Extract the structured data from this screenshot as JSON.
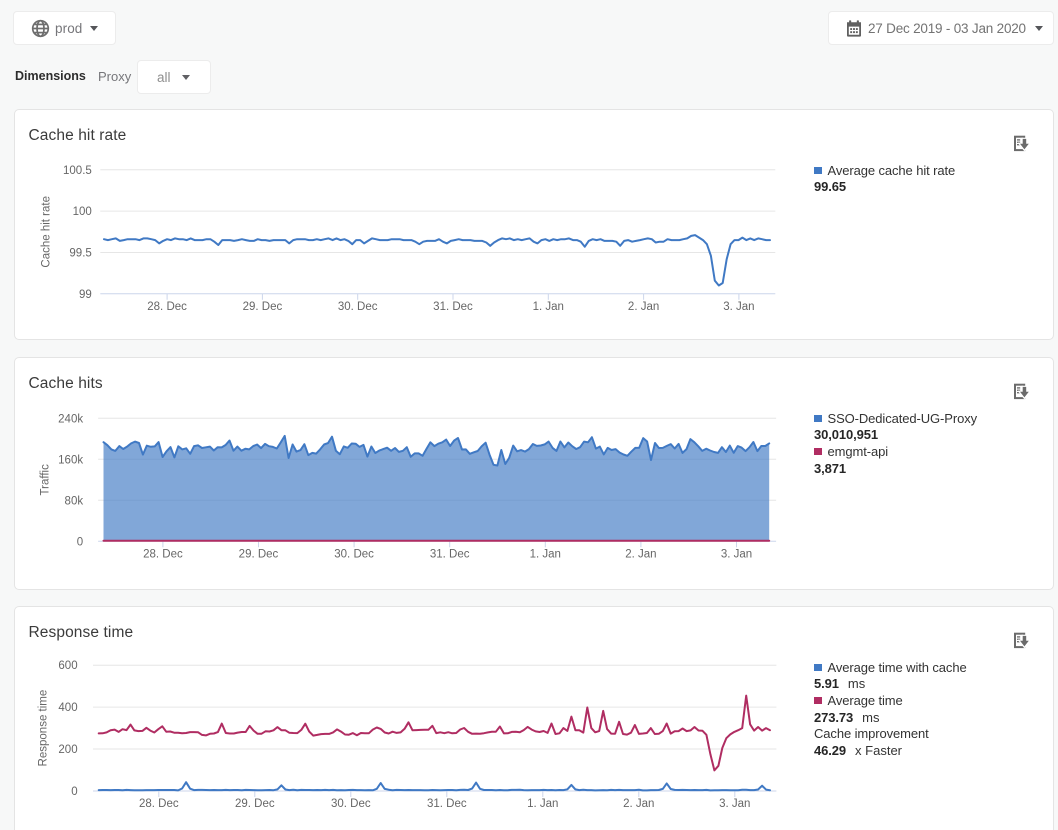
{
  "topbar": {
    "environment": "prod",
    "date_range": "27 Dec 2019 - 03 Jan 2020"
  },
  "filters": {
    "dimensions_label": "Dimensions",
    "proxy_label": "Proxy",
    "proxy_value": "all"
  },
  "colors": {
    "series_blue": "#4079c4",
    "series_red": "#b02d62",
    "grid": "#e6e6e6",
    "axis_line": "#ccd6eb",
    "axis_text": "#666666"
  },
  "cards": [
    {
      "title": "Cache hit rate",
      "legend": [
        {
          "swatch": "#4079c4",
          "label": "Average cache hit rate",
          "value": "99.65",
          "unit": ""
        }
      ]
    },
    {
      "title": "Cache hits",
      "legend": [
        {
          "swatch": "#4079c4",
          "label": "SSO-Dedicated-UG-Proxy",
          "value": "30,010,951",
          "unit": ""
        },
        {
          "swatch": "#b02d62",
          "label": "emgmt-api",
          "value": "3,871",
          "unit": ""
        }
      ]
    },
    {
      "title": "Response time",
      "legend": [
        {
          "swatch": "#4079c4",
          "label": "Average time with cache",
          "value": "5.91",
          "unit": "ms"
        },
        {
          "swatch": "#b02d62",
          "label": "Average time",
          "value": "273.73",
          "unit": "ms"
        },
        {
          "swatch": null,
          "label": "Cache improvement",
          "value": "46.29",
          "unit": "x Faster"
        }
      ]
    }
  ],
  "chart_data": [
    {
      "type": "line",
      "title": "Cache hit rate",
      "ylabel": "Cache hit rate",
      "yticks": [
        100.5,
        100,
        99.5,
        99
      ],
      "ytick_labels": [
        "100.5",
        "100",
        "99.5",
        "99"
      ],
      "ylim": [
        99,
        100.5
      ],
      "xtick_labels": [
        "28. Dec",
        "29. Dec",
        "30. Dec",
        "31. Dec",
        "1. Jan",
        "2. Jan",
        "3. Jan"
      ],
      "series": [
        {
          "name": "Average cache hit rate",
          "color": "#4079c4",
          "values": [
            99.66,
            99.65,
            99.66,
            99.67,
            99.64,
            99.65,
            99.66,
            99.66,
            99.66,
            99.65,
            99.67,
            99.67,
            99.66,
            99.65,
            99.61,
            99.64,
            99.66,
            99.65,
            99.67,
            99.66,
            99.66,
            99.65,
            99.67,
            99.65,
            99.65,
            99.65,
            99.66,
            99.66,
            99.63,
            99.59,
            99.65,
            99.65,
            99.65,
            99.64,
            99.65,
            99.66,
            99.65,
            99.64,
            99.64,
            99.66,
            99.65,
            99.65,
            99.64,
            99.65,
            99.65,
            99.65,
            99.65,
            99.61,
            99.65,
            99.66,
            99.66,
            99.66,
            99.65,
            99.65,
            99.66,
            99.65,
            99.66,
            99.67,
            99.65,
            99.67,
            99.65,
            99.66,
            99.64,
            99.6,
            99.65,
            99.65,
            99.61,
            99.64,
            99.67,
            99.66,
            99.65,
            99.65,
            99.65,
            99.66,
            99.66,
            99.66,
            99.65,
            99.65,
            99.65,
            99.63,
            99.6,
            99.63,
            99.64,
            99.64,
            99.64,
            99.66,
            99.63,
            99.61,
            99.64,
            99.65,
            99.66,
            99.65,
            99.65,
            99.65,
            99.64,
            99.64,
            99.64,
            99.62,
            99.58,
            99.62,
            99.65,
            99.67,
            99.66,
            99.67,
            99.65,
            99.66,
            99.65,
            99.66,
            99.67,
            99.63,
            99.61,
            99.65,
            99.66,
            99.64,
            99.66,
            99.65,
            99.66,
            99.66,
            99.67,
            99.65,
            99.65,
            99.63,
            99.57,
            99.64,
            99.66,
            99.65,
            99.66,
            99.64,
            99.64,
            99.64,
            99.63,
            99.58,
            99.64,
            99.65,
            99.63,
            99.64,
            99.65,
            99.66,
            99.67,
            99.66,
            99.62,
            99.63,
            99.63,
            99.66,
            99.65,
            99.65,
            99.65,
            99.66,
            99.67,
            99.7,
            99.71,
            99.68,
            99.65,
            99.6,
            99.46,
            99.16,
            99.1,
            99.13,
            99.42,
            99.6,
            99.65,
            99.65,
            99.68,
            99.65,
            99.67,
            99.65,
            99.67,
            99.66,
            99.65,
            99.65
          ]
        }
      ]
    },
    {
      "type": "area",
      "title": "Cache hits",
      "ylabel": "Traffic",
      "yticks": [
        240000,
        160000,
        80000,
        0
      ],
      "ytick_labels": [
        "240k",
        "160k",
        "80k",
        "0"
      ],
      "ylim": [
        0,
        240000
      ],
      "xtick_labels": [
        "28. Dec",
        "29. Dec",
        "30. Dec",
        "31. Dec",
        "1. Jan",
        "2. Jan",
        "3. Jan"
      ],
      "series": [
        {
          "name": "SSO-Dedicated-UG-Proxy",
          "color": "#4079c4",
          "fill": true,
          "values": [
            193334,
            187546,
            179386,
            176398,
            185852,
            180068,
            184851,
            191039,
            194592,
            191864,
            169257,
            186626,
            184318,
            185263,
            193510,
            164403,
            175572,
            183862,
            163766,
            185314,
            179251,
            181486,
            170725,
            185727,
            187230,
            182101,
            183391,
            184738,
            177154,
            183652,
            183222,
            187843,
            196687,
            176709,
            184697,
            176779,
            180466,
            179351,
            185673,
            188886,
            181925,
            190003,
            185480,
            184188,
            181014,
            193178,
            205752,
            162557,
            188968,
            175027,
            178044,
            189396,
            168268,
            172455,
            171104,
            179313,
            188909,
            191650,
            204023,
            176520,
            170039,
            185261,
            182441,
            190835,
            190416,
            184115,
            188073,
            165200,
            185018,
            172282,
            176932,
            179808,
            182564,
            176606,
            182062,
            174364,
            176605,
            183602,
            164830,
            171512,
            171452,
            166859,
            180325,
            193187,
            185683,
            190409,
            193202,
            198364,
            185947,
            196546,
            201547,
            179145,
            179238,
            170813,
            173682,
            176185,
            185130,
            192358,
            169179,
            149250,
            148000,
            178104,
            150831,
            162876,
            186635,
            175567,
            177869,
            175032,
            179962,
            189892,
            186081,
            186833,
            189117,
            194575,
            182325,
            176302,
            194674,
            183215,
            192813,
            185585,
            180137,
            183662,
            194532,
            193204,
            203183,
            180857,
            184791,
            169606,
            182188,
            178214,
            179886,
            173294,
            169435,
            166907,
            174905,
            182231,
            182647,
            201361,
            194677,
            158708,
            191891,
            182143,
            182203,
            186207,
            189578,
            181087,
            189989,
            172489,
            179917,
            199422,
            193117,
            185358,
            176434,
            180643,
            177212,
            174338,
            172524,
            183608,
            174288,
            186809,
            172740,
            185739,
            182818,
            175996,
            183571,
            193660,
            176034,
            185877,
            186000,
            191000
          ]
        },
        {
          "name": "emgmt-api",
          "color": "#b02d62",
          "fill": false,
          "values": [
            23,
            16,
            17,
            25,
            21,
            13,
            26,
            24,
            20,
            18,
            26,
            24,
            33,
            25,
            25,
            22,
            26,
            26,
            28,
            21,
            21,
            21,
            26,
            29,
            21,
            21,
            24,
            22,
            27,
            14,
            20,
            20,
            14,
            19,
            19,
            22,
            27,
            22,
            19,
            23,
            27,
            19,
            19,
            25,
            22,
            26,
            23,
            26,
            19,
            23,
            22,
            18,
            17,
            26,
            22,
            19,
            23,
            28,
            14,
            17,
            19,
            29,
            24,
            26,
            18,
            19,
            25,
            23,
            25,
            22,
            24,
            24,
            26,
            26,
            17,
            14,
            27,
            28,
            19,
            16,
            23,
            27,
            30,
            25,
            22,
            19,
            23,
            22,
            19,
            31,
            30,
            28,
            19,
            26,
            26,
            25,
            28,
            26,
            26,
            26,
            24,
            16,
            23,
            21,
            18,
            30,
            30,
            28,
            24,
            28,
            23,
            24,
            19,
            25,
            23,
            18,
            23,
            23,
            30,
            27,
            23,
            24,
            23,
            22,
            19,
            22,
            20,
            18,
            25,
            25,
            16,
            23,
            27,
            27,
            27,
            23,
            20,
            19,
            24,
            25,
            28,
            27,
            22,
            18,
            22,
            24,
            22,
            21,
            24,
            21,
            20,
            24,
            21,
            24,
            24,
            18,
            21,
            29,
            18,
            15,
            16,
            23,
            23,
            23,
            28,
            12,
            25,
            29,
            18,
            21
          ]
        }
      ]
    },
    {
      "type": "line",
      "title": "Response time",
      "ylabel": "Response time",
      "yticks": [
        600,
        400,
        200,
        0
      ],
      "ytick_labels": [
        "600",
        "400",
        "200",
        "0"
      ],
      "ylim": [
        0,
        600
      ],
      "xtick_labels": [
        "28. Dec",
        "29. Dec",
        "30. Dec",
        "31. Dec",
        "1. Jan",
        "2. Jan",
        "3. Jan"
      ],
      "series": [
        {
          "name": "Average time",
          "color": "#b02d62",
          "values": [
            274.9,
            275.1,
            279.3,
            289.9,
            293.0,
            281.8,
            294.7,
            290.4,
            316.6,
            288.9,
            285.6,
            286.6,
            301.6,
            288.1,
            278.8,
            294.6,
            308.8,
            283.0,
            283.7,
            277.8,
            278.1,
            275.8,
            276.7,
            281.0,
            280.9,
            280.5,
            267.6,
            265.1,
            272.9,
            274.0,
            280.8,
            321.4,
            276.6,
            274.3,
            274.3,
            278.3,
            281.2,
            281.4,
            310.7,
            287.9,
            273.0,
            273.3,
            284.5,
            283.6,
            289.4,
            304.8,
            290.0,
            289.5,
            277.6,
            276.5,
            276.1,
            291.3,
            321.0,
            283.5,
            264.3,
            267.6,
            271.5,
            272.1,
            272.2,
            279.5,
            293.6,
            283.3,
            269.3,
            268.4,
            276.0,
            265.4,
            276.6,
            275.8,
            275.3,
            292.9,
            302.7,
            296.2,
            279.0,
            274.3,
            282.6,
            277.2,
            279.7,
            296.5,
            327.8,
            289.5,
            290.4,
            291.2,
            292.4,
            291.9,
            310.8,
            276.1,
            279.8,
            275.8,
            280.2,
            275.3,
            276.5,
            293.3,
            300.6,
            282.2,
            272.7,
            273.9,
            273.2,
            275.5,
            279.5,
            282.3,
            282.9,
            307.5,
            274.6,
            275.3,
            281.9,
            282.5,
            280.0,
            290.2,
            305.6,
            292.9,
            284.4,
            281.6,
            286.0,
            277.2,
            322.0,
            271.9,
            275.4,
            300.0,
            286.8,
            355.0,
            290.0,
            289.5,
            278.3,
            398.0,
            300.0,
            280.1,
            285.7,
            382.0,
            295.0,
            273.7,
            273.5,
            330.0,
            271.6,
            268.9,
            278.2,
            315.0,
            272.4,
            274.1,
            276.7,
            300.0,
            271.8,
            272.7,
            285.5,
            322.0,
            273.7,
            284.9,
            285.8,
            298.0,
            285.7,
            288.9,
            305.0,
            288.4,
            287.0,
            268.0,
            175.0,
            98.0,
            120.0,
            205.0,
            252.0,
            270.0,
            282.0,
            290.0,
            300.0,
            455.0,
            318.0,
            288.0,
            305.0,
            288.0,
            300.0,
            290.0
          ]
        },
        {
          "name": "Average time with cache",
          "color": "#4079c4",
          "values": [
            4.4,
            4.64,
            4.87,
            4.14,
            4.93,
            4.67,
            3.54,
            5.41,
            4.05,
            3.24,
            3.67,
            3.69,
            4.44,
            4.21,
            4.16,
            4.83,
            4.64,
            4.62,
            4.69,
            4.83,
            2.92,
            11.76,
            42.0,
            10.92,
            4.4,
            5.13,
            5.23,
            4.54,
            4.05,
            4.74,
            4.03,
            4.4,
            5.09,
            4.01,
            4.96,
            4.87,
            3.73,
            5.08,
            4.89,
            4.47,
            3.87,
            3.8,
            4.02,
            4.78,
            3.73,
            7.56,
            27.0,
            7.02,
            4.48,
            6.11,
            3.44,
            5.43,
            4.5,
            4.69,
            4.48,
            4.71,
            4.29,
            5.42,
            4.08,
            5.19,
            3.95,
            4.36,
            3.65,
            4.72,
            5.41,
            4.35,
            4.26,
            3.62,
            4.24,
            3.29,
            10.64,
            38.0,
            9.88,
            6.37,
            3.99,
            5.4,
            4.57,
            4.29,
            4.7,
            4.44,
            4.48,
            4.11,
            3.42,
            3.32,
            4.86,
            4.21,
            3.98,
            4.41,
            4.96,
            4.53,
            3.94,
            5.26,
            5.51,
            4.75,
            11.2,
            40.0,
            10.4,
            4.83,
            4.82,
            4.76,
            3.63,
            4.89,
            3.45,
            3.84,
            5.31,
            4.99,
            5.44,
            4.21,
            3.59,
            4.23,
            4.47,
            4.46,
            5.19,
            4.15,
            4.65,
            3.71,
            4.72,
            4.4,
            8.12,
            29.0,
            7.54,
            4.21,
            5.64,
            4.33,
            4.23,
            2.93,
            3.77,
            4.22,
            3.92,
            5.37,
            4.28,
            5.3,
            4.44,
            4.43,
            4.34,
            4.4,
            5.6,
            2.78,
            3.0,
            4.02,
            4.41,
            4.88,
            10.08,
            36.0,
            9.36,
            5.12,
            4.53,
            5.07,
            4.59,
            4.01,
            4.89,
            4.48,
            4.4,
            5.43,
            2.68,
            3.41,
            3.57,
            4.15,
            4.22,
            3.34,
            3.71,
            3.8,
            6.12,
            5.66,
            4.11,
            4.15,
            7.0,
            25.0,
            6.5,
            3.7
          ]
        }
      ]
    }
  ]
}
